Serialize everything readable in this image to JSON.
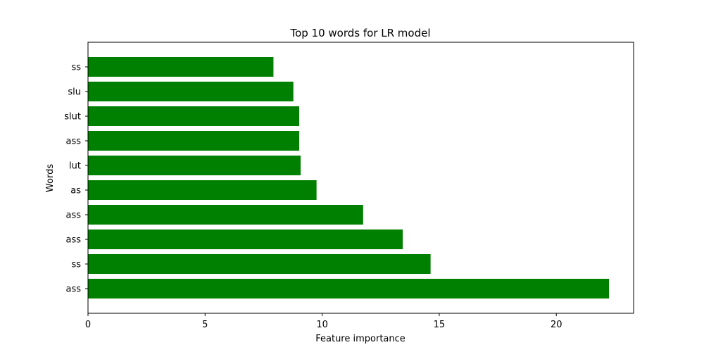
{
  "chart_data": {
    "type": "bar",
    "orientation": "horizontal",
    "title": "Top 10 words for LR model",
    "xlabel": "Feature importance",
    "ylabel": "Words",
    "categories": [
      "ss",
      "slu",
      "slut",
      "ass",
      "lut",
      "as",
      "ass ",
      "ass",
      "ss",
      "ass"
    ],
    "values": [
      7.92,
      8.77,
      9.02,
      9.02,
      9.08,
      9.76,
      11.75,
      13.44,
      14.63,
      22.25
    ],
    "xlim": [
      0,
      23.3
    ],
    "xticks": [
      0,
      5,
      10,
      15,
      20
    ],
    "grid": false,
    "bar_color": "#008000"
  }
}
